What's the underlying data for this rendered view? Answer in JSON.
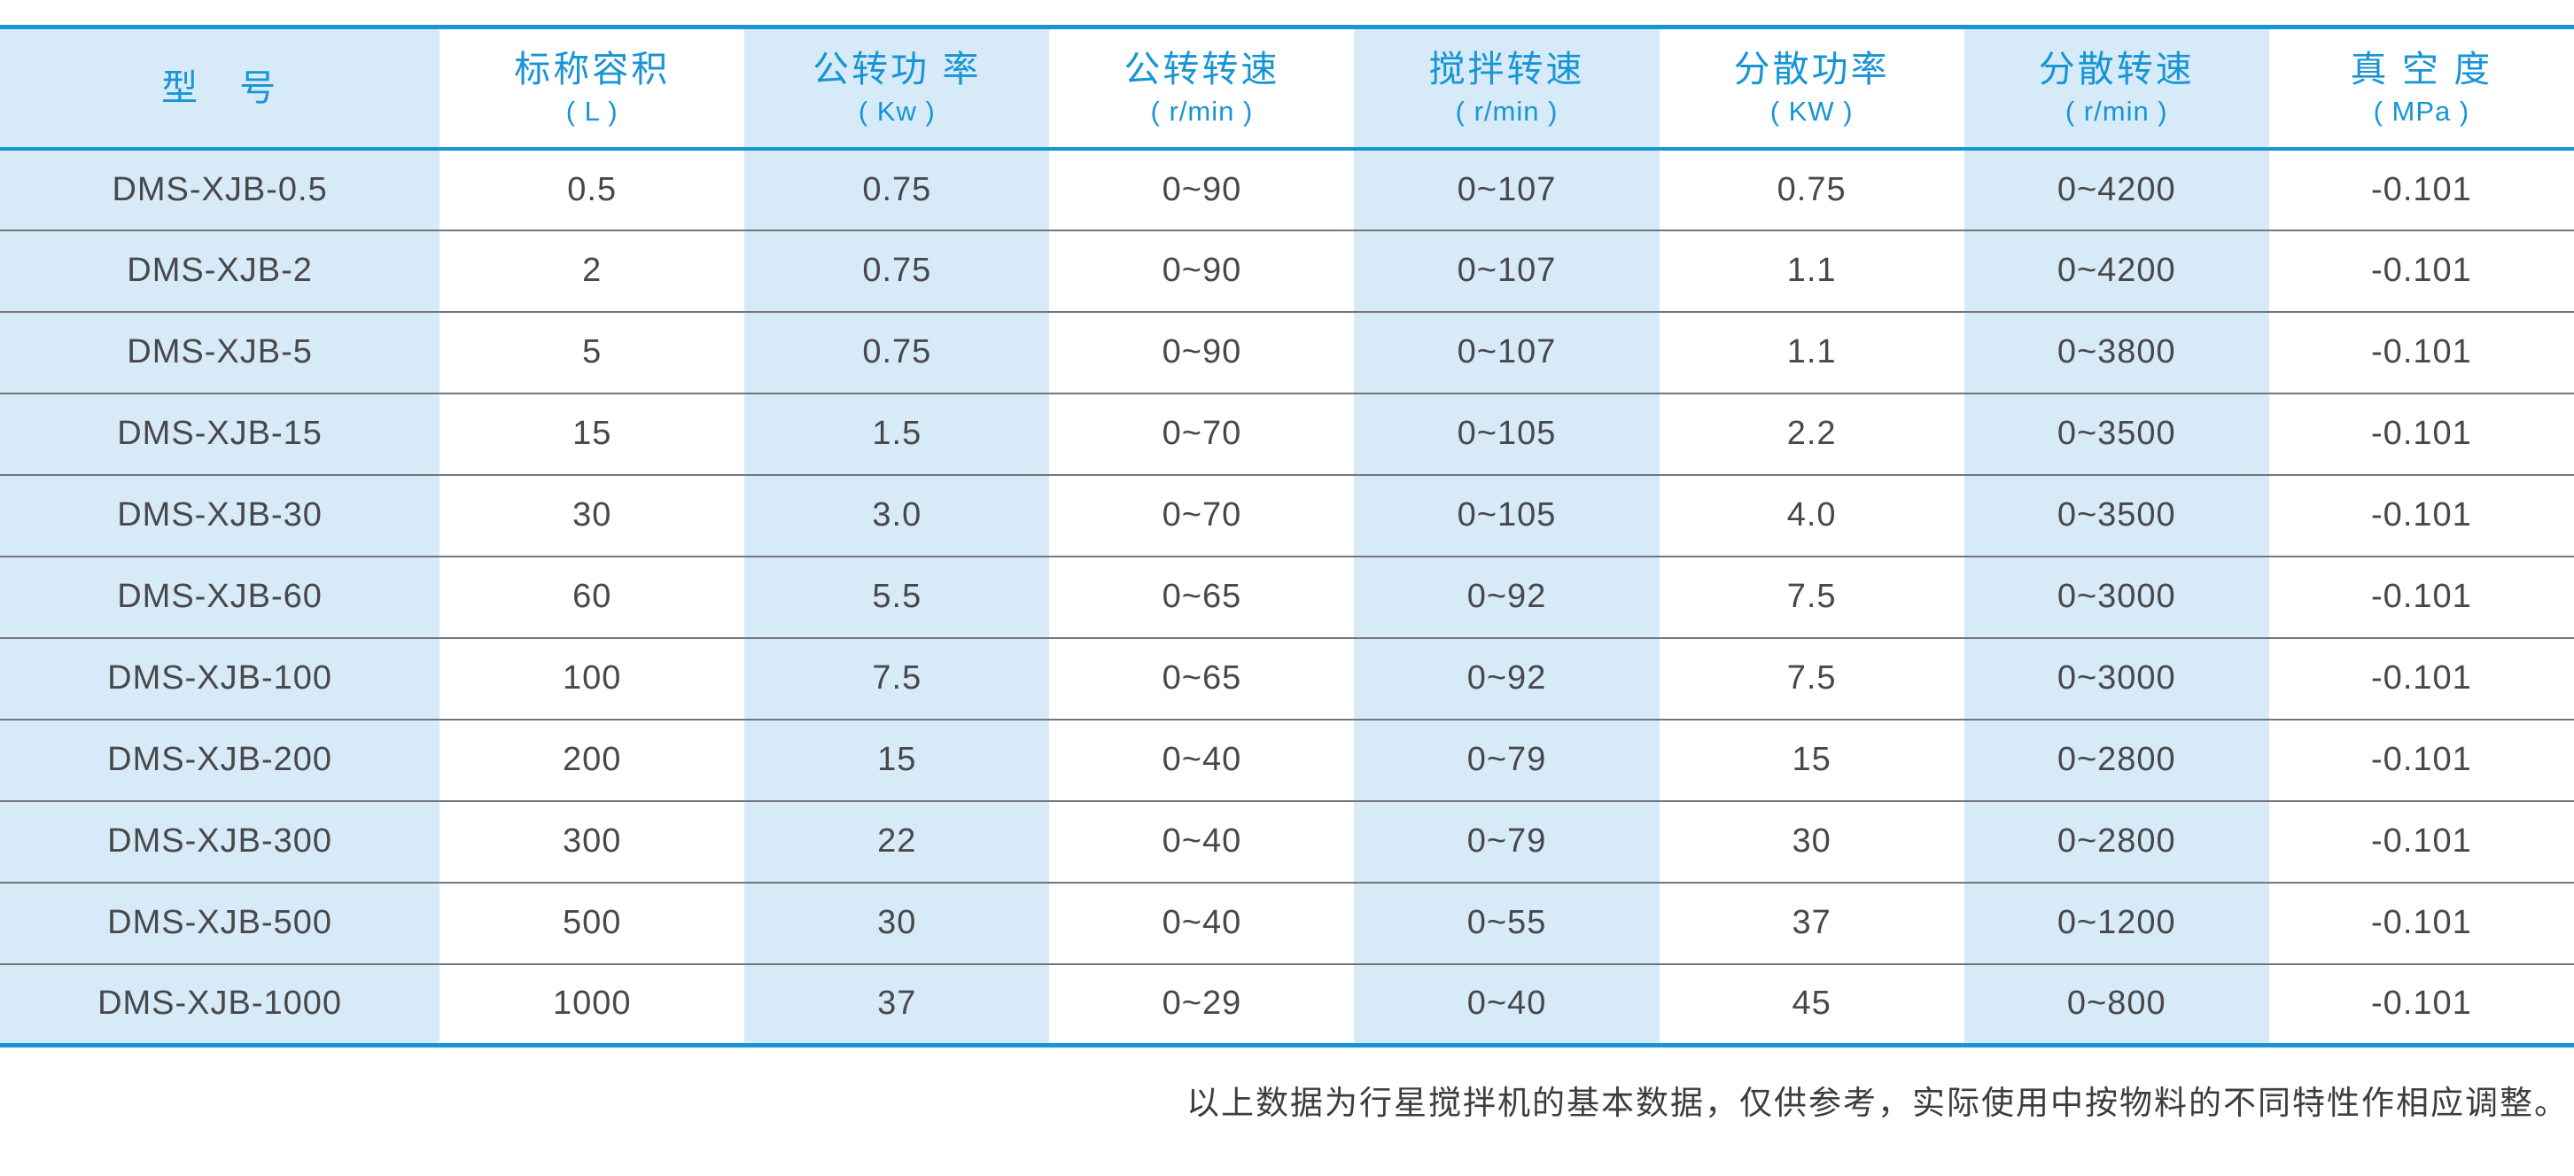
{
  "table": {
    "columns": [
      {
        "label": "型　号",
        "unit": ""
      },
      {
        "label": "标称容积",
        "unit": "( L )"
      },
      {
        "label": "公转功 率",
        "unit": "( Kw )"
      },
      {
        "label": "公转转速",
        "unit": "( r/min )"
      },
      {
        "label": "搅拌转速",
        "unit": "( r/min )"
      },
      {
        "label": "分散功率",
        "unit": "( KW )"
      },
      {
        "label": "分散转速",
        "unit": "( r/min )"
      },
      {
        "label": "真 空 度",
        "unit": "( MPa )"
      }
    ],
    "rows": [
      [
        "DMS-XJB-0.5",
        "0.5",
        "0.75",
        "0~90",
        "0~107",
        "0.75",
        "0~4200",
        "-0.101"
      ],
      [
        "DMS-XJB-2",
        "2",
        "0.75",
        "0~90",
        "0~107",
        "1.1",
        "0~4200",
        "-0.101"
      ],
      [
        "DMS-XJB-5",
        "5",
        "0.75",
        "0~90",
        "0~107",
        "1.1",
        "0~3800",
        "-0.101"
      ],
      [
        "DMS-XJB-15",
        "15",
        "1.5",
        "0~70",
        "0~105",
        "2.2",
        "0~3500",
        "-0.101"
      ],
      [
        "DMS-XJB-30",
        "30",
        "3.0",
        "0~70",
        "0~105",
        "4.0",
        "0~3500",
        "-0.101"
      ],
      [
        "DMS-XJB-60",
        "60",
        "5.5",
        "0~65",
        "0~92",
        "7.5",
        "0~3000",
        "-0.101"
      ],
      [
        "DMS-XJB-100",
        "100",
        "7.5",
        "0~65",
        "0~92",
        "7.5",
        "0~3000",
        "-0.101"
      ],
      [
        "DMS-XJB-200",
        "200",
        "15",
        "0~40",
        "0~79",
        "15",
        "0~2800",
        "-0.101"
      ],
      [
        "DMS-XJB-300",
        "300",
        "22",
        "0~40",
        "0~79",
        "30",
        "0~2800",
        "-0.101"
      ],
      [
        "DMS-XJB-500",
        "500",
        "30",
        "0~40",
        "0~55",
        "37",
        "0~1200",
        "-0.101"
      ],
      [
        "DMS-XJB-1000",
        "1000",
        "37",
        "0~29",
        "0~40",
        "45",
        "0~800",
        "-0.101"
      ]
    ]
  },
  "footnote": "以上数据为行星搅拌机的基本数据，仅供参考，实际使用中按物料的不同特性作相应调整。",
  "colors": {
    "accent_blue": "#1795d5",
    "stripe_light_blue": "#d7eaf8",
    "body_text": "#48484b",
    "row_separator": "#76767a"
  }
}
